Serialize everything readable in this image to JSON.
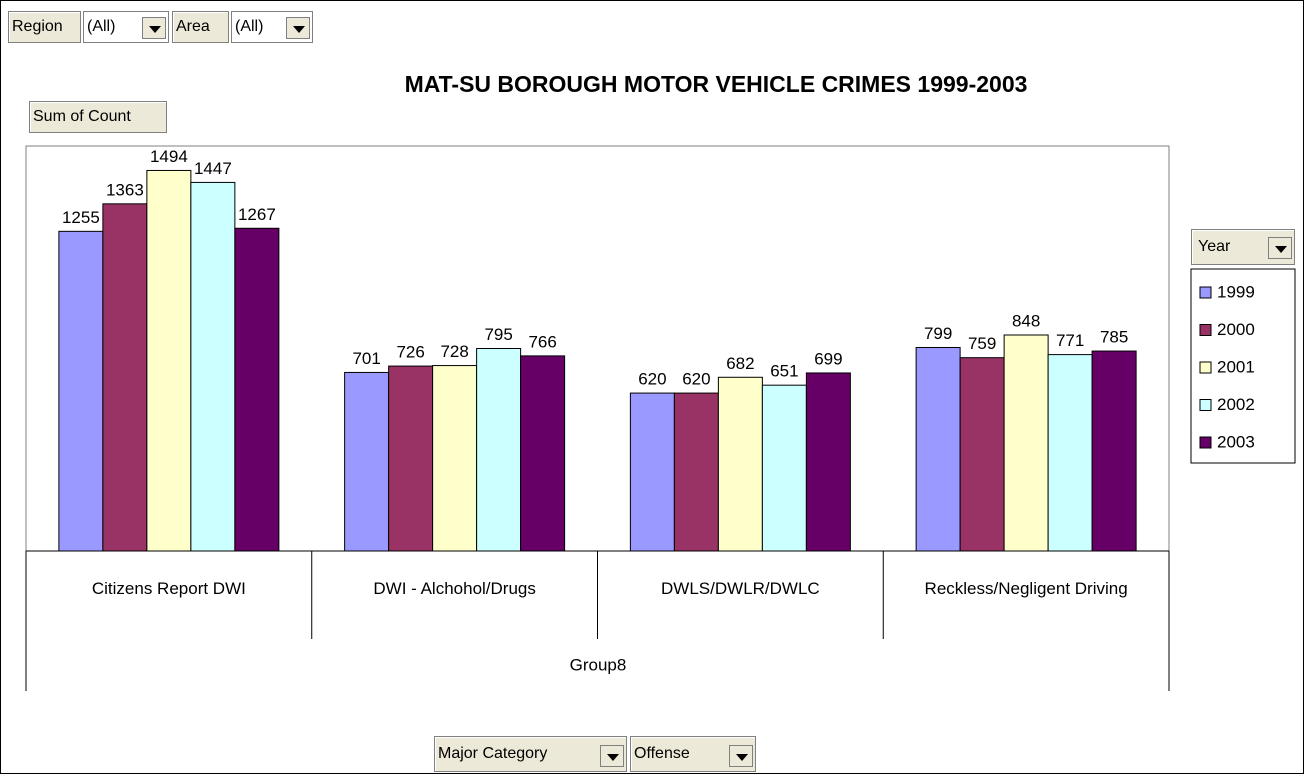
{
  "filters": [
    {
      "label": "Region",
      "value": "(All)"
    },
    {
      "label": "Area",
      "value": "(All)"
    }
  ],
  "data_field": "Sum of Count",
  "legend_field": "Year",
  "row_fields": [
    "Major Category",
    "Offense"
  ],
  "chart_data": {
    "type": "bar",
    "title": "MAT-SU BOROUGH MOTOR VEHICLE CRIMES  1999-2003",
    "xlabel": "Group8",
    "categories": [
      "Citizens Report DWI",
      "DWI - Alchohol/Drugs",
      "DWLS/DWLR/DWLC",
      "Reckless/Negligent Driving"
    ],
    "series": [
      {
        "name": "1999",
        "color": "#9999ff",
        "values": [
          1255,
          701,
          620,
          799
        ]
      },
      {
        "name": "2000",
        "color": "#993366",
        "values": [
          1363,
          726,
          620,
          759
        ]
      },
      {
        "name": "2001",
        "color": "#ffffcc",
        "values": [
          1494,
          728,
          682,
          848
        ]
      },
      {
        "name": "2002",
        "color": "#ccffff",
        "values": [
          1447,
          795,
          651,
          771
        ]
      },
      {
        "name": "2003",
        "color": "#660066",
        "values": [
          1267,
          766,
          699,
          785
        ]
      }
    ],
    "ylim": [
      0,
      1590
    ],
    "legend": "right"
  }
}
